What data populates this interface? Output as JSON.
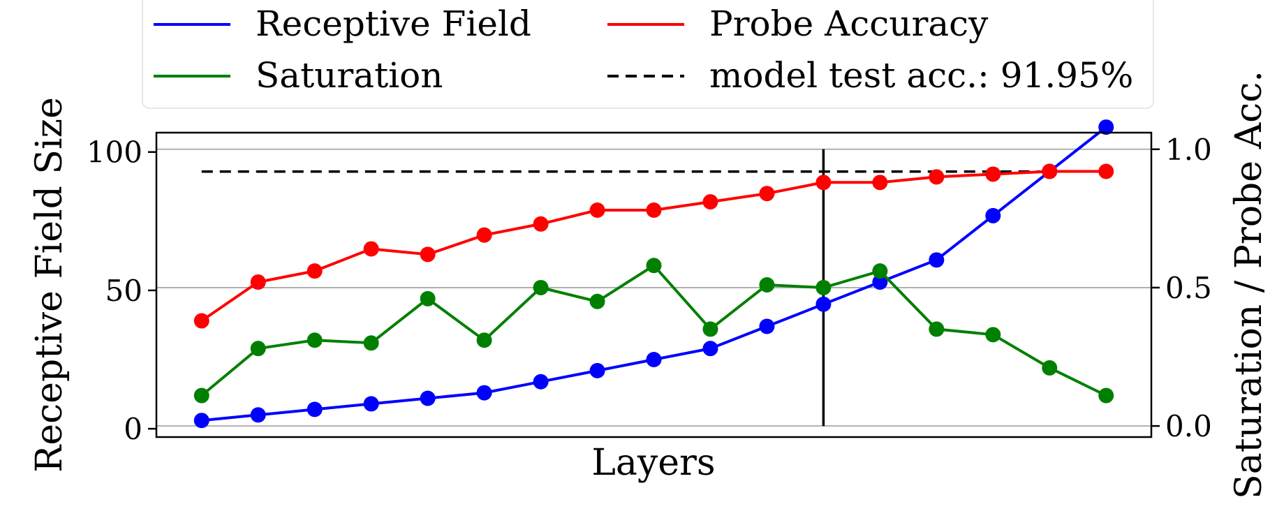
{
  "chart_data": {
    "type": "line",
    "xlabel": "Layers",
    "ylabel_left": "Receptive Field Size",
    "ylabel_right": "Saturation / Probe Acc.",
    "ylim_left": [
      -3,
      107
    ],
    "ylim_right": [
      -0.04,
      1.06
    ],
    "yticks_left": [
      0,
      50,
      100
    ],
    "yticks_left_labels": [
      "0",
      "50",
      "100"
    ],
    "yticks_right": [
      0.0,
      0.5,
      1.0
    ],
    "yticks_right_labels": [
      "0.0",
      "0.5",
      "1.0"
    ],
    "grid": "horizontal at right-axis ticks",
    "legend_position": "top",
    "x": [
      1,
      2,
      3,
      4,
      5,
      6,
      7,
      8,
      9,
      10,
      11,
      12,
      13,
      14,
      15,
      16,
      17
    ],
    "series": [
      {
        "name": "Receptive Field",
        "axis": "left",
        "color": "#0000ff",
        "values": [
          3,
          5,
          7,
          9,
          11,
          13,
          17,
          21,
          25,
          29,
          37,
          45,
          53,
          61,
          77,
          93,
          109
        ]
      },
      {
        "name": "Saturation",
        "axis": "right",
        "color": "#008000",
        "values": [
          0.11,
          0.28,
          0.31,
          0.3,
          0.46,
          0.31,
          0.5,
          0.45,
          0.58,
          0.35,
          0.51,
          0.5,
          0.56,
          0.35,
          0.33,
          0.21,
          0.11
        ]
      },
      {
        "name": "Probe Accuracy",
        "axis": "right",
        "color": "#ff0000",
        "values": [
          0.38,
          0.52,
          0.56,
          0.64,
          0.62,
          0.69,
          0.73,
          0.78,
          0.78,
          0.81,
          0.84,
          0.88,
          0.88,
          0.9,
          0.91,
          0.92,
          0.92
        ]
      }
    ],
    "reference_line": {
      "name": "model test acc.: 91.95%",
      "axis": "right",
      "value": 0.9195,
      "style": "dashed",
      "color": "#000000"
    },
    "vertical_marker": {
      "x": 12,
      "color": "#000000"
    },
    "legend": [
      {
        "label": "Receptive Field",
        "color": "#0000ff",
        "style": "solid"
      },
      {
        "label": "Probe Accuracy",
        "color": "#ff0000",
        "style": "solid"
      },
      {
        "label": "Saturation",
        "color": "#008000",
        "style": "solid"
      },
      {
        "label": "model test acc.: 91.95%",
        "color": "#000000",
        "style": "dashed"
      }
    ]
  }
}
